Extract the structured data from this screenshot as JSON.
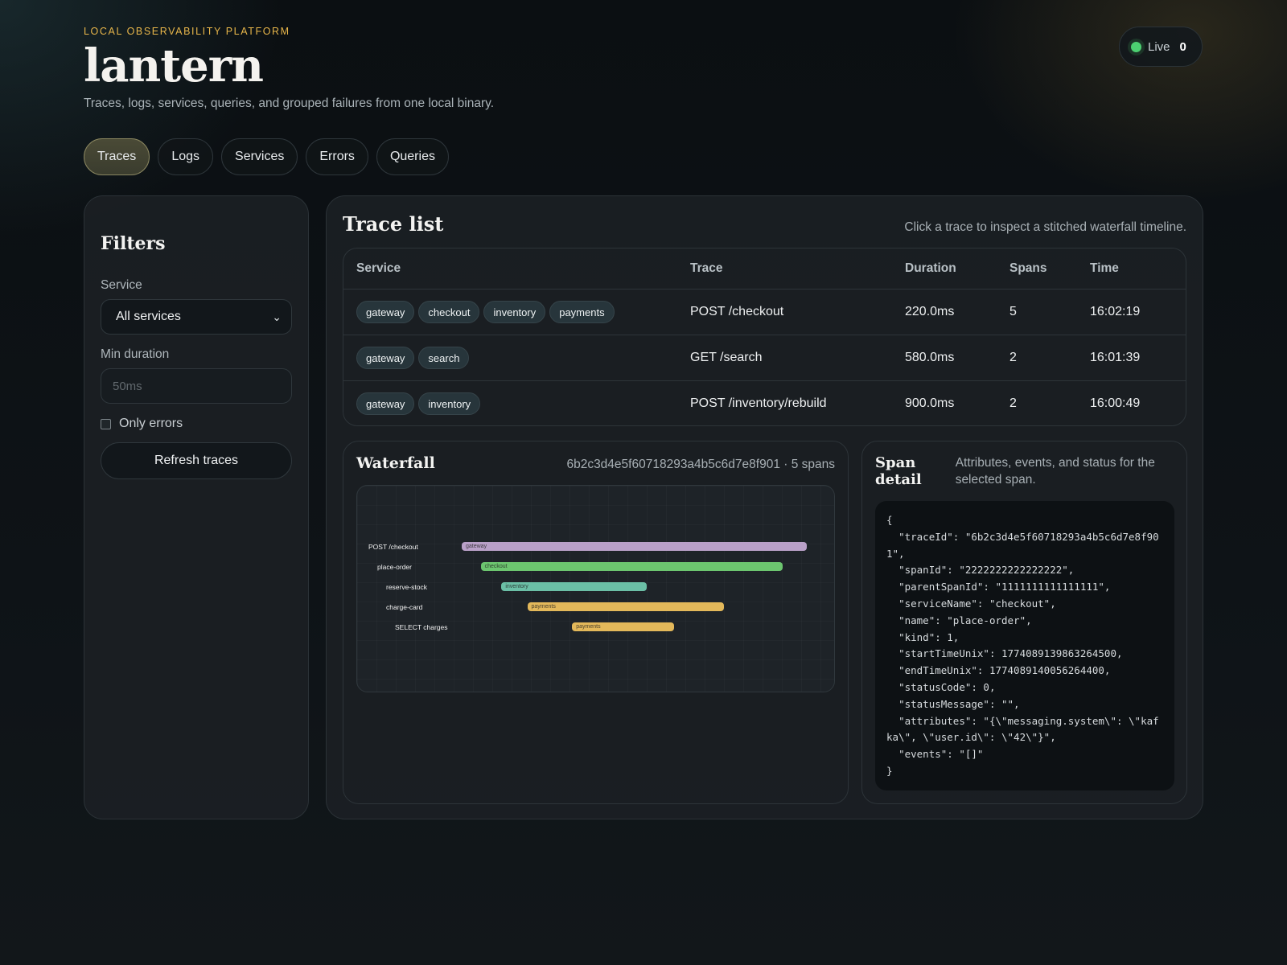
{
  "header": {
    "eyebrow": "LOCAL OBSERVABILITY PLATFORM",
    "brand": "lantern",
    "subtitle": "Traces, logs, services, queries, and grouped failures from one local binary."
  },
  "live": {
    "label": "Live",
    "count": "0",
    "dot_color": "#4cd071"
  },
  "tabs": [
    {
      "label": "Traces",
      "active": true
    },
    {
      "label": "Logs"
    },
    {
      "label": "Services"
    },
    {
      "label": "Errors"
    },
    {
      "label": "Queries"
    }
  ],
  "filters": {
    "title": "Filters",
    "service_label": "Service",
    "service_value": "All services",
    "min_duration_label": "Min duration",
    "min_duration_placeholder": "50ms",
    "only_errors_label": "Only errors",
    "refresh_label": "Refresh traces"
  },
  "trace_list": {
    "title": "Trace list",
    "hint": "Click a trace to inspect a stitched waterfall timeline.",
    "columns": [
      "Service",
      "Trace",
      "Duration",
      "Spans",
      "Time"
    ],
    "rows": [
      {
        "services": [
          "gateway",
          "checkout",
          "inventory",
          "payments"
        ],
        "trace": "POST /checkout",
        "duration": "220.0ms",
        "spans": "5",
        "time": "16:02:19"
      },
      {
        "services": [
          "gateway",
          "search"
        ],
        "trace": "GET /search",
        "duration": "580.0ms",
        "spans": "2",
        "time": "16:01:39"
      },
      {
        "services": [
          "gateway",
          "inventory"
        ],
        "trace": "POST /inventory/rebuild",
        "duration": "900.0ms",
        "spans": "2",
        "time": "16:00:49"
      }
    ]
  },
  "waterfall": {
    "title": "Waterfall",
    "meta": "6b2c3d4e5f60718293a4b5c6d7e8f901 · 5 spans",
    "spans": [
      {
        "name": "POST /checkout",
        "service": "gateway",
        "start": 0.0,
        "end": 1.0,
        "depth": 0,
        "color": "#b9a0c8"
      },
      {
        "name": "place-order",
        "service": "checkout",
        "start": 0.055,
        "end": 0.93,
        "depth": 1,
        "color": "#6cc56f"
      },
      {
        "name": "reserve-stock",
        "service": "inventory",
        "start": 0.115,
        "end": 0.535,
        "depth": 2,
        "color": "#6bbfa6"
      },
      {
        "name": "charge-card",
        "service": "payments",
        "start": 0.19,
        "end": 0.76,
        "depth": 2,
        "color": "#e3b85a"
      },
      {
        "name": "SELECT charges",
        "service": "payments",
        "start": 0.32,
        "end": 0.615,
        "depth": 3,
        "color": "#e3b85a"
      }
    ]
  },
  "span_detail": {
    "title": "Span detail",
    "description": "Attributes, events, and status for the selected span.",
    "json": "{\n  \"traceId\": \"6b2c3d4e5f60718293a4b5c6d7e8f901\",\n  \"spanId\": \"2222222222222222\",\n  \"parentSpanId\": \"1111111111111111\",\n  \"serviceName\": \"checkout\",\n  \"name\": \"place-order\",\n  \"kind\": 1,\n  \"startTimeUnix\": 1774089139863264500,\n  \"endTimeUnix\": 1774089140056264400,\n  \"statusCode\": 0,\n  \"statusMessage\": \"\",\n  \"attributes\": \"{\\\"messaging.system\\\": \\\"kafka\\\", \\\"user.id\\\": \\\"42\\\"}\",\n  \"events\": \"[]\"\n}"
  }
}
